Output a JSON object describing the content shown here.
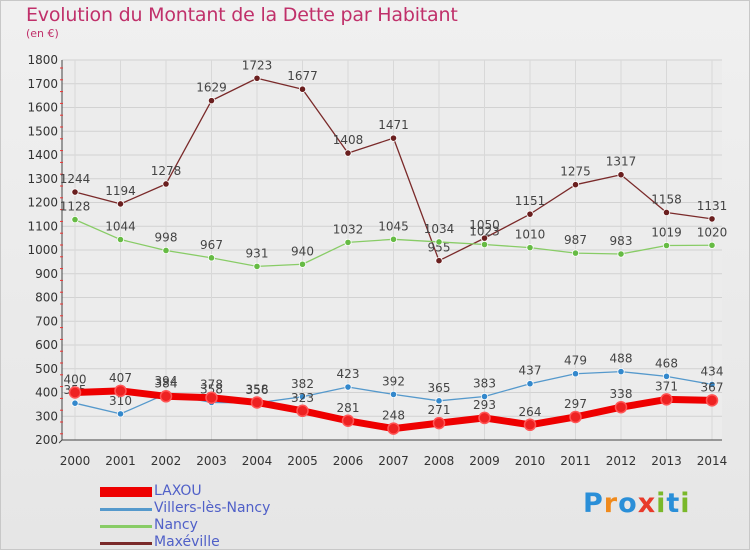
{
  "chart_data": {
    "type": "line",
    "title": "Evolution du Montant de la Dette par Habitant",
    "subtitle": "(en €)",
    "xlabel": "",
    "ylabel": "",
    "x": [
      "2000",
      "2001",
      "2002",
      "2003",
      "2004",
      "2005",
      "2006",
      "2007",
      "2008",
      "2009",
      "2010",
      "2011",
      "2012",
      "2013",
      "2014"
    ],
    "ylim": [
      200,
      1800
    ],
    "yticks": [
      200,
      300,
      400,
      500,
      600,
      700,
      800,
      900,
      1000,
      1100,
      1200,
      1300,
      1400,
      1500,
      1600,
      1700,
      1800
    ],
    "grid": true,
    "legend_position": "bottom-left",
    "series": [
      {
        "name": "Maxéville",
        "color": "#7a2a2a",
        "marker": "#6a1f1f",
        "width": 1.3,
        "values": [
          1244,
          1194,
          1278,
          1629,
          1723,
          1677,
          1408,
          1471,
          955,
          1050,
          1151,
          1275,
          1317,
          1158,
          1131
        ]
      },
      {
        "name": "Nancy",
        "color": "#88cc66",
        "marker": "#66bb44",
        "width": 1.3,
        "values": [
          1128,
          1044,
          998,
          967,
          931,
          940,
          1032,
          1045,
          1034,
          1023,
          1010,
          987,
          983,
          1019,
          1020
        ]
      },
      {
        "name": "Villers-lès-Nancy",
        "color": "#5599cc",
        "marker": "#3388cc",
        "width": 1.3,
        "values": [
          355,
          310,
          394,
          358,
          356,
          382,
          423,
          392,
          365,
          383,
          437,
          479,
          488,
          468,
          434
        ]
      },
      {
        "name": "LAXOU",
        "color": "#ee0000",
        "marker": "#ee2222",
        "width": 7,
        "values": [
          400,
          407,
          384,
          378,
          358,
          323,
          281,
          248,
          271,
          293,
          264,
          297,
          338,
          371,
          367
        ]
      }
    ],
    "labels": {
      "Maxéville": [
        "1244",
        "1194",
        "1278",
        "1629",
        "1723",
        "1677",
        "1408",
        "1471",
        "955",
        "1050",
        "1151",
        "1275",
        "1317",
        "1158",
        "1131"
      ],
      "Nancy": [
        "1128",
        "1044",
        "998",
        "967",
        "931",
        "940",
        "1032",
        "1045",
        "1034",
        "1023",
        "1010",
        "987",
        "983",
        "1019",
        "1020"
      ],
      "Villers-lès-Nancy": [
        "355",
        "310",
        "394",
        "358",
        "356",
        "382",
        "423",
        "392",
        "365",
        "383",
        "437",
        "479",
        "488",
        "468",
        "434"
      ],
      "LAXOU": [
        "400",
        "407",
        "384",
        "378",
        "358",
        "323",
        "281",
        "248",
        "271",
        "293",
        "264",
        "297",
        "338",
        "371",
        "367"
      ]
    },
    "legend": [
      "LAXOU",
      "Villers-lès-Nancy",
      "Nancy",
      "Maxéville"
    ]
  },
  "logo": {
    "text": "Proxiti"
  }
}
